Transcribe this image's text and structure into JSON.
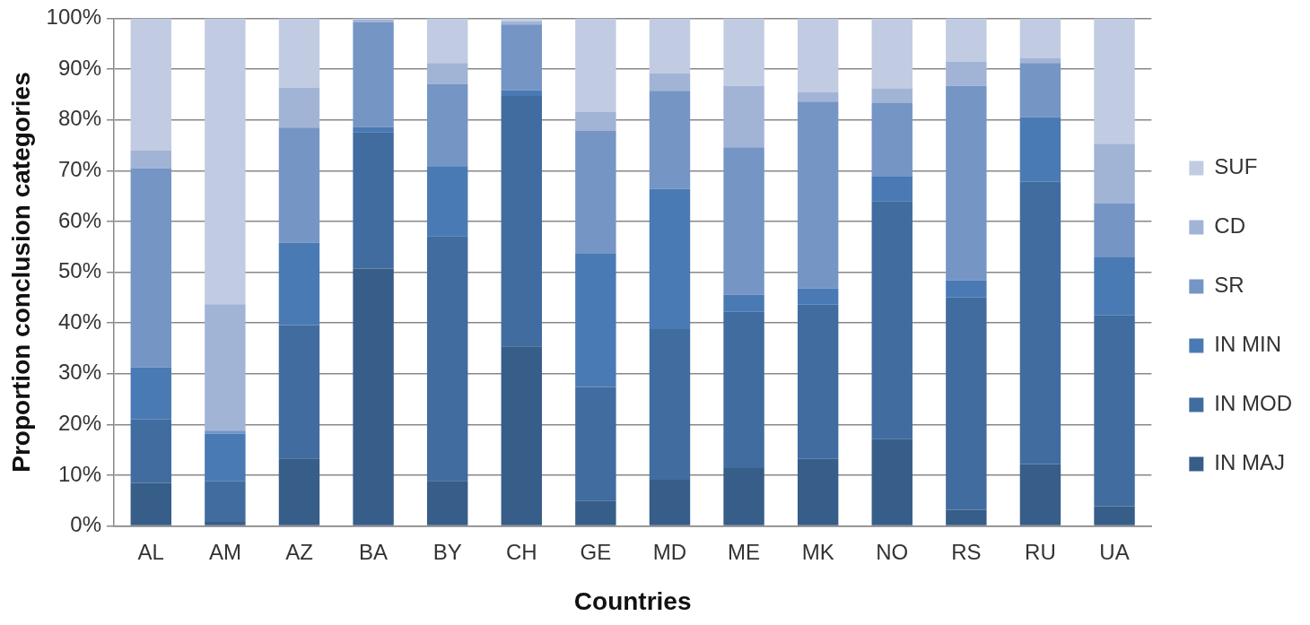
{
  "chart_data": {
    "type": "bar",
    "stacked": true,
    "xlabel": "Countries",
    "ylabel": "Proportion conclusion categories",
    "categories": [
      "AL",
      "AM",
      "AZ",
      "BA",
      "BY",
      "CH",
      "GE",
      "MD",
      "ME",
      "MK",
      "NO",
      "RS",
      "RU",
      "UA"
    ],
    "series": [
      {
        "name": "IN MAJ",
        "color": "#375d89",
        "values": [
          8.5,
          0.8,
          13.3,
          50.7,
          8.9,
          35.4,
          4.9,
          9.1,
          11.4,
          13.2,
          17.1,
          3.2,
          12.2,
          3.9
        ]
      },
      {
        "name": "IN MOD",
        "color": "#416c9f",
        "values": [
          12.5,
          8.0,
          26.3,
          26.9,
          48.2,
          49.3,
          22.5,
          29.7,
          30.8,
          30.4,
          46.9,
          41.8,
          55.6,
          37.6
        ]
      },
      {
        "name": "IN MIN",
        "color": "#4a7ab4",
        "values": [
          10.3,
          9.4,
          16.2,
          1.0,
          13.8,
          1.1,
          26.2,
          27.6,
          3.4,
          3.2,
          4.8,
          3.4,
          12.7,
          11.4
        ]
      },
      {
        "name": "SR",
        "color": "#7595c5",
        "values": [
          39.2,
          0.6,
          22.7,
          20.6,
          16.2,
          13.0,
          24.2,
          19.3,
          29.0,
          36.8,
          14.5,
          38.3,
          10.7,
          10.7
        ]
      },
      {
        "name": "CD",
        "color": "#a2b4d5",
        "values": [
          3.5,
          24.9,
          7.9,
          0.5,
          4.1,
          0.6,
          3.8,
          3.5,
          12.1,
          1.8,
          2.8,
          4.8,
          1.0,
          11.7
        ]
      },
      {
        "name": "SUF",
        "color": "#c1cce2",
        "values": [
          26.0,
          56.3,
          13.6,
          0.3,
          8.8,
          0.6,
          18.4,
          10.8,
          13.3,
          14.6,
          13.9,
          8.5,
          7.8,
          24.7
        ]
      }
    ],
    "ylim": [
      0,
      100
    ],
    "yticks": [
      {
        "value": 0,
        "label": "0%"
      },
      {
        "value": 10,
        "label": "10%"
      },
      {
        "value": 20,
        "label": "20%"
      },
      {
        "value": 30,
        "label": "30%"
      },
      {
        "value": 40,
        "label": "40%"
      },
      {
        "value": 50,
        "label": "50%"
      },
      {
        "value": 60,
        "label": "60%"
      },
      {
        "value": 70,
        "label": "70%"
      },
      {
        "value": 80,
        "label": "80%"
      },
      {
        "value": 90,
        "label": "90%"
      },
      {
        "value": 100,
        "label": "100%"
      }
    ],
    "grid": "y",
    "legend": "right"
  }
}
